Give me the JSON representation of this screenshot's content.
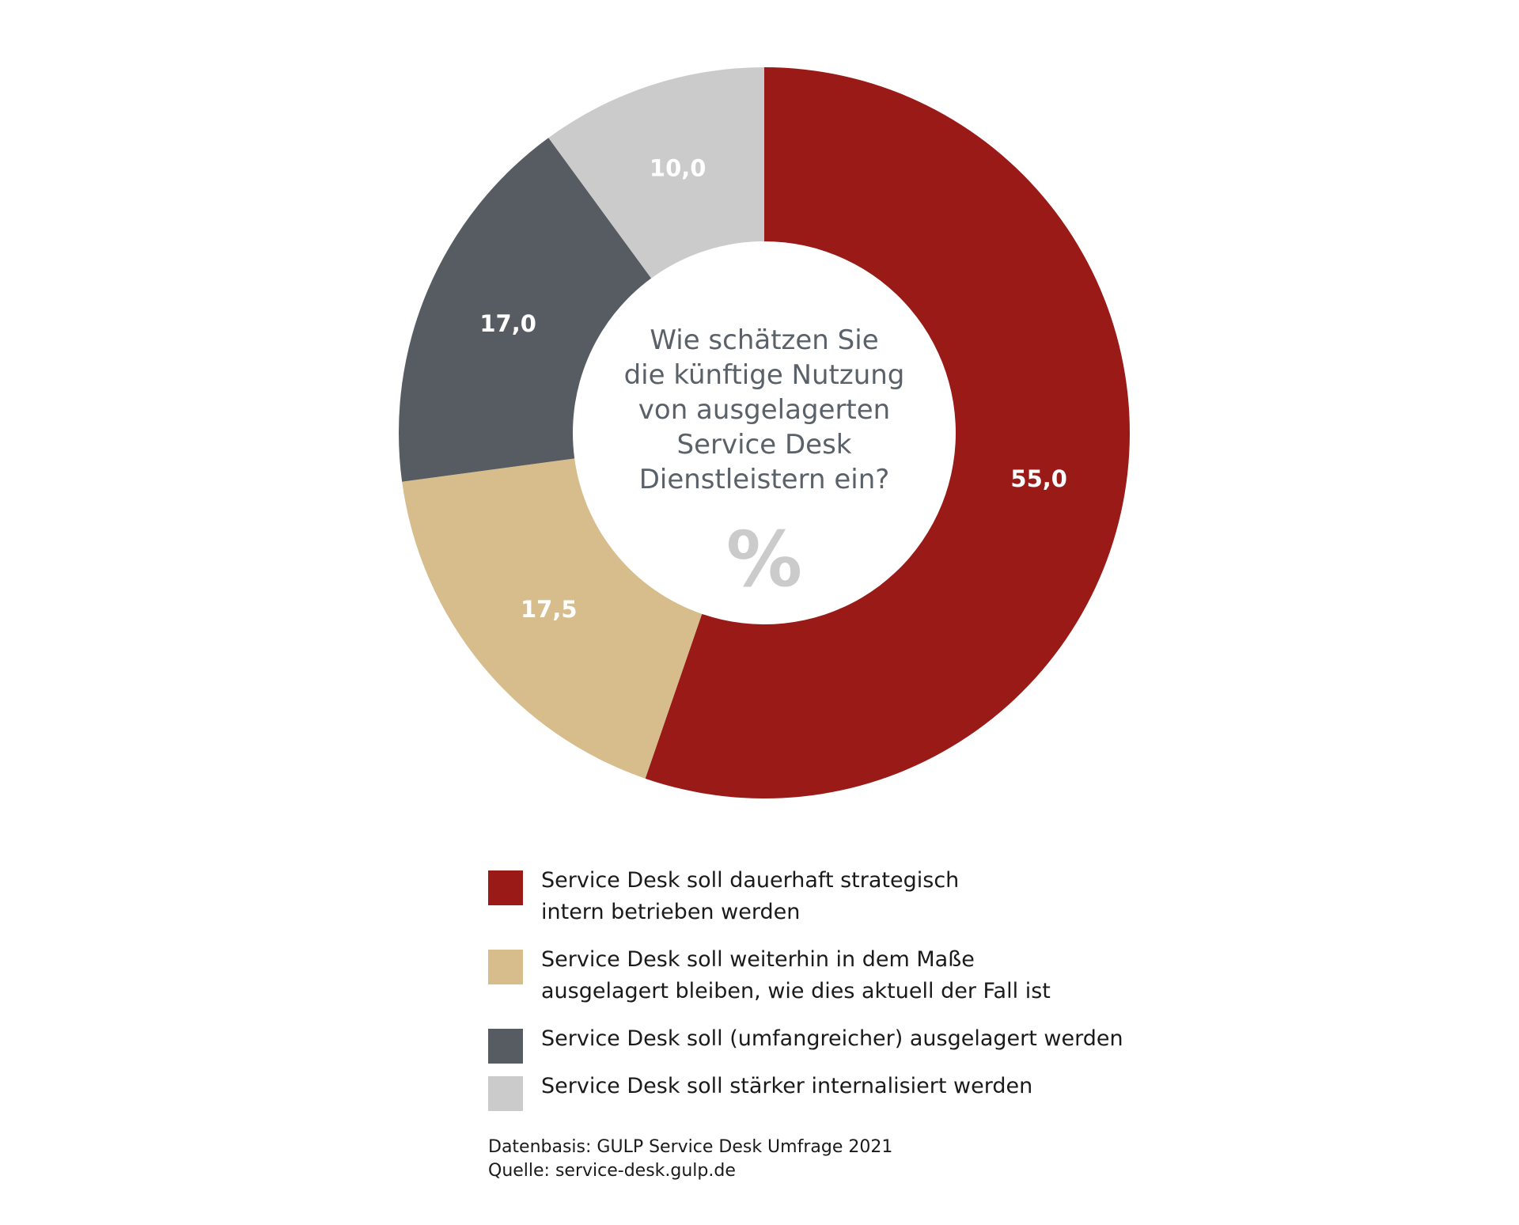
{
  "chart_data": {
    "type": "pie",
    "donut": true,
    "center_question_lines": [
      "Wie schätzen Sie",
      "die künftige Nutzung",
      "von ausgelagerten",
      "Service Desk",
      "Dienstleistern ein?"
    ],
    "unit": "%",
    "slices": [
      {
        "label": "Service Desk soll dauerhaft strategisch\nintern betrieben werden",
        "value": 55.0,
        "display": "55,0",
        "color": "#9a1a17"
      },
      {
        "label": "Service Desk soll weiterhin in dem Maße\nausgelagert bleiben, wie dies aktuell der Fall ist",
        "value": 17.5,
        "display": "17,5",
        "color": "#d8bd8c"
      },
      {
        "label": "Service Desk soll (umfangreicher) ausgelagert werden",
        "value": 17.0,
        "display": "17,0",
        "color": "#565c62"
      },
      {
        "label": "Service Desk soll stärker internalisiert werden",
        "value": 10.0,
        "display": "10,0",
        "color": "#cccbcc"
      }
    ],
    "legend_position": "bottom",
    "source_lines": [
      "Datenbasis: GULP Service Desk Umfrage 2021",
      "Quelle: service-desk.gulp.de"
    ]
  }
}
